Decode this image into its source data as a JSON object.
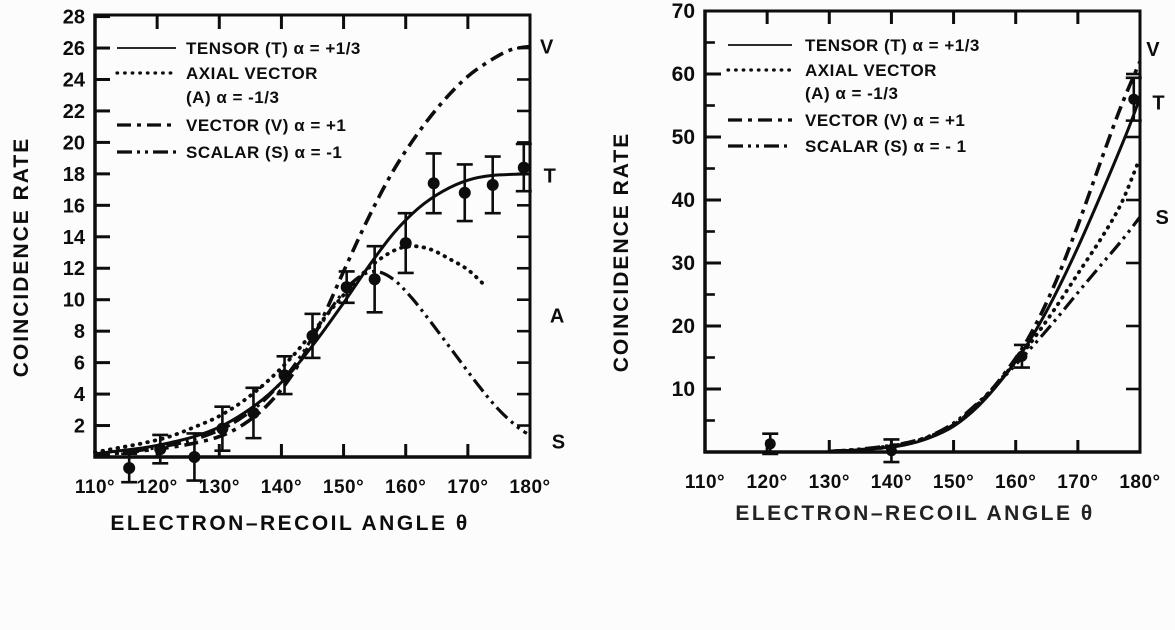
{
  "figure": {
    "description": "Two scanned physics plots of coincidence rate versus electron-recoil angle comparing tensor, axial vector, vector and scalar interaction predictions with measured data points",
    "ink_color": "#0d0d0d",
    "paper_color": "#fcfcfc"
  },
  "chart_data": [
    {
      "type": "line",
      "title": "",
      "xlabel": "ELECTRON–RECOIL ANGLE  θ",
      "ylabel": "COINCIDENCE RATE",
      "xlim": [
        110,
        180
      ],
      "ylim": [
        0,
        28.1
      ],
      "x_ticks": {
        "values": [
          110,
          120,
          130,
          140,
          150,
          160,
          170,
          180
        ],
        "labels": [
          "110°",
          "120°",
          "130°",
          "140°",
          "150°",
          "160°",
          "170°",
          "180°"
        ],
        "inner": [
          120,
          130,
          140,
          150,
          160,
          170
        ]
      },
      "y_ticks": {
        "values": [
          2,
          4,
          6,
          8,
          10,
          12,
          14,
          16,
          18,
          20,
          22,
          24,
          26,
          28
        ],
        "labels": [
          "2",
          "4",
          "6",
          "8",
          "10",
          "12",
          "14",
          "16",
          "18",
          "20",
          "22",
          "24",
          "26",
          "28"
        ],
        "minor": [],
        "right_values": [
          2,
          4,
          6,
          8,
          10,
          12,
          14,
          16,
          18,
          20,
          22,
          24,
          26
        ]
      },
      "legend": [
        {
          "style": "solid",
          "label_lines": [
            "TENSOR (T) α = +1/3"
          ]
        },
        {
          "style": "dotted",
          "label_lines": [
            "AXIAL VECTOR",
            "(A) α = -1/3"
          ]
        },
        {
          "style": "dashdot",
          "label_lines": [
            "VECTOR (V) α = +1"
          ]
        },
        {
          "style": "dashdotdot",
          "label_lines": [
            "SCALAR (S) α = -1"
          ]
        }
      ],
      "series": [
        {
          "name": "TENSOR (T)",
          "style": "solid",
          "points": [
            [
              110,
              0.2
            ],
            [
              114,
              0.4
            ],
            [
              118,
              0.6
            ],
            [
              122,
              0.9
            ],
            [
              126,
              1.3
            ],
            [
              130,
              1.9
            ],
            [
              134,
              2.8
            ],
            [
              138,
              4.0
            ],
            [
              142,
              5.6
            ],
            [
              146,
              7.6
            ],
            [
              150,
              9.8
            ],
            [
              154,
              12.1
            ],
            [
              158,
              14.2
            ],
            [
              162,
              15.8
            ],
            [
              166,
              16.9
            ],
            [
              170,
              17.6
            ],
            [
              174,
              17.9
            ],
            [
              180,
              18.0
            ]
          ]
        },
        {
          "name": "AXIAL VECTOR (A)",
          "style": "dotted",
          "points": [
            [
              110,
              0.3
            ],
            [
              114,
              0.6
            ],
            [
              118,
              0.9
            ],
            [
              122,
              1.3
            ],
            [
              126,
              1.9
            ],
            [
              130,
              2.6
            ],
            [
              134,
              3.6
            ],
            [
              138,
              4.9
            ],
            [
              142,
              6.5
            ],
            [
              146,
              8.4
            ],
            [
              150,
              10.3
            ],
            [
              154,
              12.0
            ],
            [
              158,
              13.1
            ],
            [
              161,
              13.4
            ],
            [
              164,
              13.2
            ],
            [
              167,
              12.6
            ],
            [
              170,
              11.9
            ],
            [
              173,
              10.8
            ]
          ]
        },
        {
          "name": "VECTOR (V)",
          "style": "dashdot",
          "points": [
            [
              110,
              0.1
            ],
            [
              115,
              0.3
            ],
            [
              120,
              0.5
            ],
            [
              125,
              0.8
            ],
            [
              130,
              1.3
            ],
            [
              134,
              2.1
            ],
            [
              138,
              3.4
            ],
            [
              142,
              5.4
            ],
            [
              146,
              8.3
            ],
            [
              150,
              11.8
            ],
            [
              154,
              15.2
            ],
            [
              158,
              18.2
            ],
            [
              162,
              20.6
            ],
            [
              166,
              22.6
            ],
            [
              170,
              24.2
            ],
            [
              174,
              25.3
            ],
            [
              177,
              25.9
            ],
            [
              180,
              26.1
            ]
          ]
        },
        {
          "name": "SCALAR (S)",
          "style": "dashdotdot",
          "points": [
            [
              110,
              0.1
            ],
            [
              115,
              0.3
            ],
            [
              120,
              0.6
            ],
            [
              125,
              1.0
            ],
            [
              130,
              1.7
            ],
            [
              134,
              2.6
            ],
            [
              138,
              3.9
            ],
            [
              142,
              5.8
            ],
            [
              146,
              8.2
            ],
            [
              149,
              10.0
            ],
            [
              152,
              11.3
            ],
            [
              155,
              11.8
            ],
            [
              158,
              11.3
            ],
            [
              161,
              10.1
            ],
            [
              164,
              8.6
            ],
            [
              168,
              6.5
            ],
            [
              172,
              4.4
            ],
            [
              175,
              3.0
            ],
            [
              178,
              1.9
            ],
            [
              179.5,
              1.5
            ]
          ]
        }
      ],
      "data_points": [
        [
          115.5,
          -0.7,
          0.9
        ],
        [
          120.5,
          0.5,
          0.9
        ],
        [
          126,
          0.0,
          1.5
        ],
        [
          130.5,
          1.8,
          1.4
        ],
        [
          135.5,
          2.8,
          1.6
        ],
        [
          140.5,
          5.2,
          1.2
        ],
        [
          145,
          7.7,
          1.4
        ],
        [
          150.5,
          10.8,
          1.0
        ],
        [
          155,
          11.3,
          2.1
        ],
        [
          160,
          13.6,
          1.9
        ],
        [
          164.5,
          17.4,
          1.9
        ],
        [
          169.5,
          16.8,
          1.8
        ],
        [
          174,
          17.3,
          1.8
        ],
        [
          179,
          18.4,
          1.5
        ]
      ],
      "end_labels": [
        {
          "text": "V",
          "x": 181.6,
          "y": 26.1
        },
        {
          "text": "T",
          "x": 182.2,
          "y": 17.9
        },
        {
          "text": "A",
          "x": 183.2,
          "y": 9.0
        },
        {
          "text": "S",
          "x": 183.5,
          "y": 1.0
        }
      ]
    },
    {
      "type": "line",
      "title": "",
      "xlabel": "ELECTRON–RECOIL ANGLE  θ",
      "ylabel": "COINCIDENCE RATE",
      "xlim": [
        110,
        180
      ],
      "ylim": [
        0,
        70
      ],
      "x_ticks": {
        "values": [
          110,
          120,
          130,
          140,
          150,
          160,
          170,
          180
        ],
        "labels": [
          "110°",
          "120°",
          "130°",
          "140°",
          "150°",
          "160°",
          "170°",
          "180°"
        ],
        "inner": [
          120,
          130,
          140,
          150,
          160,
          170
        ]
      },
      "y_ticks": {
        "values": [
          10,
          20,
          30,
          40,
          50,
          60,
          70
        ],
        "labels": [
          "10",
          "20",
          "30",
          "40",
          "50",
          "60",
          "70"
        ],
        "minor": [
          5,
          15,
          25,
          35,
          45,
          55,
          65
        ],
        "right_values": [
          10,
          20,
          30,
          40,
          50,
          60
        ]
      },
      "legend": [
        {
          "style": "solid",
          "label_lines": [
            "TENSOR (T) α = +1/3"
          ]
        },
        {
          "style": "dotted",
          "label_lines": [
            "AXIAL VECTOR",
            "(A) α = -1/3"
          ]
        },
        {
          "style": "dashdot",
          "label_lines": [
            "VECTOR (V) α = +1"
          ]
        },
        {
          "style": "dashdotdot",
          "label_lines": [
            "SCALAR (S) α = - 1"
          ]
        }
      ],
      "series": [
        {
          "name": "VECTOR (V)",
          "style": "dashdot",
          "points": [
            [
              130,
              0.1
            ],
            [
              134,
              0.3
            ],
            [
              138,
              0.6
            ],
            [
              142,
              1.2
            ],
            [
              146,
              2.3
            ],
            [
              150,
              4.3
            ],
            [
              154,
              7.6
            ],
            [
              158,
              12.2
            ],
            [
              162,
              18.0
            ],
            [
              166,
              26.0
            ],
            [
              170,
              36.0
            ],
            [
              174,
              47.0
            ],
            [
              177,
              55.0
            ],
            [
              180,
              62.0
            ]
          ]
        },
        {
          "name": "TENSOR (T)",
          "style": "solid",
          "points": [
            [
              130,
              0.1
            ],
            [
              134,
              0.3
            ],
            [
              138,
              0.6
            ],
            [
              142,
              1.1
            ],
            [
              146,
              2.2
            ],
            [
              150,
              4.1
            ],
            [
              154,
              7.3
            ],
            [
              158,
              11.8
            ],
            [
              162,
              17.3
            ],
            [
              166,
              24.3
            ],
            [
              170,
              32.5
            ],
            [
              174,
              41.5
            ],
            [
              178,
              51.0
            ],
            [
              180,
              56.3
            ]
          ]
        },
        {
          "name": "AXIAL VECTOR (A)",
          "style": "dotted",
          "points": [
            [
              130,
              0.1
            ],
            [
              134,
              0.3
            ],
            [
              138,
              0.7
            ],
            [
              142,
              1.3
            ],
            [
              146,
              2.4
            ],
            [
              150,
              4.4
            ],
            [
              154,
              7.7
            ],
            [
              158,
              12.0
            ],
            [
              162,
              16.8
            ],
            [
              166,
              22.3
            ],
            [
              170,
              28.3
            ],
            [
              174,
              34.3
            ],
            [
              177,
              39.5
            ],
            [
              179.5,
              45.5
            ]
          ]
        },
        {
          "name": "SCALAR (S)",
          "style": "dashdotdot",
          "points": [
            [
              130,
              0.1
            ],
            [
              134,
              0.4
            ],
            [
              138,
              0.8
            ],
            [
              142,
              1.4
            ],
            [
              146,
              2.5
            ],
            [
              150,
              4.6
            ],
            [
              154,
              7.9
            ],
            [
              158,
              11.8
            ],
            [
              162,
              16.0
            ],
            [
              166,
              20.5
            ],
            [
              170,
              25.3
            ],
            [
              174,
              30.0
            ],
            [
              177,
              33.5
            ],
            [
              180,
              37.3
            ]
          ]
        }
      ],
      "data_points": [
        [
          120.5,
          1.3,
          1.6
        ],
        [
          140,
          0.2,
          1.8
        ],
        [
          161,
          15.2,
          1.8
        ],
        [
          179,
          56.0,
          3.4
        ]
      ],
      "end_labels": [
        {
          "text": "V",
          "x": 181.0,
          "y": 64.0
        },
        {
          "text": "T",
          "x": 182.0,
          "y": 55.5
        },
        {
          "text": "S",
          "x": 182.5,
          "y": 37.3
        }
      ]
    }
  ]
}
